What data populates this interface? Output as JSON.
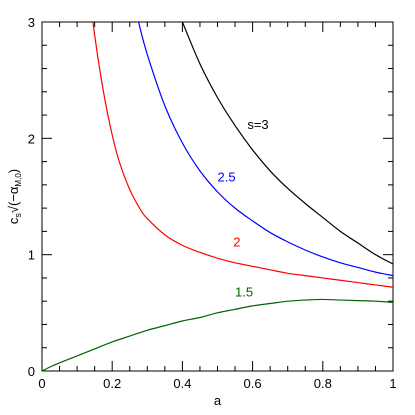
{
  "chart_data": {
    "type": "line",
    "xlabel": "a",
    "ylabel_main": "c",
    "ylabel_sub_s": "s",
    "ylabel_sqrt": "√",
    "ylabel_inner": "(−α",
    "ylabel_inner_sub": "M,0",
    "ylabel_close": ")",
    "xlim": [
      0,
      1
    ],
    "ylim": [
      0,
      3
    ],
    "x_ticks": [
      {
        "value": 0,
        "label": "0"
      },
      {
        "value": 0.2,
        "label": "0.2"
      },
      {
        "value": 0.4,
        "label": "0.4"
      },
      {
        "value": 0.6,
        "label": "0.6"
      },
      {
        "value": 0.8,
        "label": "0.8"
      },
      {
        "value": 1,
        "label": "1"
      }
    ],
    "y_ticks": [
      {
        "value": 0,
        "label": "0"
      },
      {
        "value": 1,
        "label": "1"
      },
      {
        "value": 2,
        "label": "2"
      },
      {
        "value": 3,
        "label": "3"
      }
    ],
    "grid": false,
    "series": [
      {
        "name": "s=3",
        "color": "#000000",
        "label_pos": {
          "x": 0.585,
          "y": 2.08
        },
        "x": [
          0.4,
          0.45,
          0.5,
          0.55,
          0.6,
          0.65,
          0.7,
          0.75,
          0.8,
          0.85,
          0.9,
          0.95,
          1.0
        ],
        "y": [
          3.0,
          2.64,
          2.35,
          2.11,
          1.9,
          1.72,
          1.57,
          1.44,
          1.32,
          1.2,
          1.1,
          1.0,
          0.92
        ]
      },
      {
        "name": "2.5",
        "color": "#0000ff",
        "label_pos": {
          "x": 0.5,
          "y": 1.63
        },
        "x": [
          0.275,
          0.3,
          0.35,
          0.4,
          0.45,
          0.5,
          0.55,
          0.6,
          0.65,
          0.7,
          0.75,
          0.8,
          0.85,
          0.9,
          0.95,
          1.0
        ],
        "y": [
          3.0,
          2.72,
          2.28,
          1.96,
          1.72,
          1.54,
          1.4,
          1.29,
          1.19,
          1.11,
          1.04,
          0.98,
          0.93,
          0.89,
          0.85,
          0.82
        ]
      },
      {
        "name": "2",
        "color": "#ff0000",
        "label_pos": {
          "x": 0.545,
          "y": 1.07
        },
        "x": [
          0.145,
          0.16,
          0.18,
          0.2,
          0.22,
          0.25,
          0.28,
          0.3,
          0.35,
          0.4,
          0.45,
          0.5,
          0.55,
          0.6,
          0.65,
          0.7,
          0.75,
          0.8,
          0.85,
          0.9,
          0.95,
          1.0
        ],
        "y": [
          3.0,
          2.68,
          2.32,
          2.03,
          1.8,
          1.56,
          1.39,
          1.31,
          1.17,
          1.08,
          1.02,
          0.97,
          0.93,
          0.9,
          0.87,
          0.84,
          0.82,
          0.8,
          0.78,
          0.76,
          0.74,
          0.72
        ]
      },
      {
        "name": "1.5",
        "color": "#006400",
        "label_pos": {
          "x": 0.55,
          "y": 0.64
        },
        "x": [
          0,
          0.02,
          0.05,
          0.1,
          0.15,
          0.2,
          0.25,
          0.3,
          0.35,
          0.4,
          0.45,
          0.5,
          0.55,
          0.6,
          0.65,
          0.7,
          0.75,
          0.8,
          0.85,
          0.9,
          0.95,
          1.0
        ],
        "y": [
          0,
          0.03,
          0.07,
          0.13,
          0.19,
          0.25,
          0.3,
          0.35,
          0.39,
          0.43,
          0.46,
          0.5,
          0.53,
          0.56,
          0.58,
          0.6,
          0.61,
          0.615,
          0.61,
          0.605,
          0.6,
          0.59
        ]
      }
    ]
  }
}
